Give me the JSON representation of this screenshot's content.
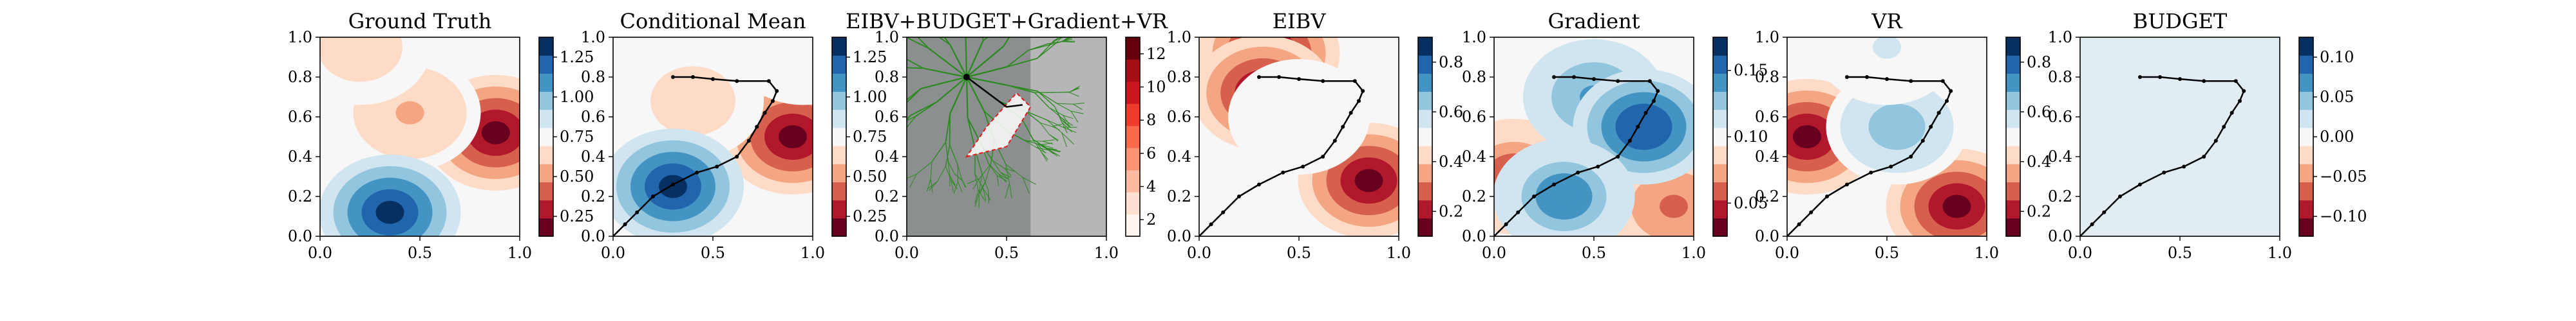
{
  "chart_data": [
    {
      "type": "heatmap",
      "title": "Ground Truth",
      "xlim": [
        0,
        1
      ],
      "ylim": [
        0,
        1
      ],
      "xticks": [
        "0.0",
        "0.5",
        "1.0"
      ],
      "yticks": [
        "0.0",
        "0.2",
        "0.4",
        "0.6",
        "0.8",
        "1.0"
      ],
      "colormap": "RdBu",
      "colorbar_ticks": [
        "0.25",
        "0.50",
        "0.75",
        "1.00",
        "1.25"
      ],
      "colorbar_range": [
        0.1,
        1.4
      ],
      "blobs": [
        {
          "x": 0.88,
          "y": 0.52,
          "value": 0.1
        },
        {
          "x": 0.45,
          "y": 0.62,
          "value": 0.55
        },
        {
          "x": 0.2,
          "y": 0.95,
          "value": 0.6
        },
        {
          "x": 0.35,
          "y": 0.12,
          "value": 1.35
        }
      ]
    },
    {
      "type": "heatmap",
      "title": "Conditional Mean",
      "xlim": [
        0,
        1
      ],
      "ylim": [
        0,
        1
      ],
      "xticks": [
        "0.0",
        "0.5",
        "1.0"
      ],
      "yticks": [
        "0.0",
        "0.2",
        "0.4",
        "0.6",
        "0.8",
        "1.0"
      ],
      "colormap": "RdBu",
      "colorbar_ticks": [
        "0.25",
        "0.50",
        "0.75",
        "1.00",
        "1.25"
      ],
      "colorbar_range": [
        0.1,
        1.4
      ],
      "blobs": [
        {
          "x": 0.9,
          "y": 0.5,
          "value": 0.1
        },
        {
          "x": 0.4,
          "y": 0.68,
          "value": 0.6
        },
        {
          "x": 0.3,
          "y": 0.25,
          "value": 1.35
        },
        {
          "x": 0.95,
          "y": 0.95,
          "value": 0.7
        }
      ],
      "path": [
        [
          0.0,
          0.0
        ],
        [
          0.06,
          0.06
        ],
        [
          0.12,
          0.12
        ],
        [
          0.2,
          0.2
        ],
        [
          0.3,
          0.26
        ],
        [
          0.42,
          0.32
        ],
        [
          0.52,
          0.35
        ],
        [
          0.62,
          0.4
        ],
        [
          0.68,
          0.48
        ],
        [
          0.72,
          0.55
        ],
        [
          0.76,
          0.62
        ],
        [
          0.8,
          0.68
        ],
        [
          0.82,
          0.73
        ],
        [
          0.78,
          0.78
        ],
        [
          0.62,
          0.78
        ],
        [
          0.5,
          0.79
        ],
        [
          0.4,
          0.8
        ],
        [
          0.3,
          0.8
        ]
      ]
    },
    {
      "type": "heatmap",
      "title": "EIBV+BUDGET+Gradient+VR",
      "xlim": [
        0,
        1
      ],
      "ylim": [
        0,
        1
      ],
      "xticks": [
        "0.0",
        "0.5",
        "1.0"
      ],
      "yticks": [
        "0.0",
        "0.2",
        "0.4",
        "0.6",
        "0.8",
        "1.0"
      ],
      "colormap": "Reds",
      "colorbar_ticks": [
        "2",
        "4",
        "6",
        "8",
        "10",
        "12"
      ],
      "colorbar_range": [
        1,
        12
      ],
      "tree_root": [
        0.3,
        0.8
      ],
      "ellipse_polygon": [
        [
          0.3,
          0.4
        ],
        [
          0.5,
          0.45
        ],
        [
          0.62,
          0.65
        ],
        [
          0.55,
          0.72
        ],
        [
          0.4,
          0.55
        ]
      ],
      "path": [
        [
          0.3,
          0.8
        ],
        [
          0.5,
          0.65
        ],
        [
          0.58,
          0.66
        ]
      ]
    },
    {
      "type": "heatmap",
      "title": "EIBV",
      "xlim": [
        0,
        1
      ],
      "ylim": [
        0,
        1
      ],
      "xticks": [
        "0.0",
        "0.5",
        "1.0"
      ],
      "yticks": [
        "0.0",
        "0.2",
        "0.4",
        "0.6",
        "0.8",
        "1.0"
      ],
      "colormap": "RdBu",
      "colorbar_ticks": [
        "0.2",
        "0.4",
        "0.6",
        "0.8"
      ],
      "colorbar_range": [
        0.0,
        1.0
      ],
      "blobs": [
        {
          "x": 0.35,
          "y": 0.92,
          "value": 0.0
        },
        {
          "x": 0.32,
          "y": 0.72,
          "value": 0.0
        },
        {
          "x": 0.85,
          "y": 0.28,
          "value": 0.0
        },
        {
          "x": 0.5,
          "y": 0.6,
          "value": 0.5
        }
      ],
      "path": [
        [
          0.0,
          0.0
        ],
        [
          0.06,
          0.06
        ],
        [
          0.12,
          0.12
        ],
        [
          0.2,
          0.2
        ],
        [
          0.3,
          0.26
        ],
        [
          0.42,
          0.32
        ],
        [
          0.52,
          0.35
        ],
        [
          0.62,
          0.4
        ],
        [
          0.68,
          0.48
        ],
        [
          0.72,
          0.55
        ],
        [
          0.76,
          0.62
        ],
        [
          0.8,
          0.68
        ],
        [
          0.82,
          0.73
        ],
        [
          0.78,
          0.78
        ],
        [
          0.62,
          0.78
        ],
        [
          0.5,
          0.79
        ],
        [
          0.4,
          0.8
        ],
        [
          0.3,
          0.8
        ]
      ]
    },
    {
      "type": "heatmap",
      "title": "Gradient",
      "xlim": [
        0,
        1
      ],
      "ylim": [
        0,
        1
      ],
      "xticks": [
        "0.0",
        "0.5",
        "1.0"
      ],
      "yticks": [
        "0.0",
        "0.2",
        "0.4",
        "0.6",
        "0.8",
        "1.0"
      ],
      "colormap": "RdBu",
      "colorbar_ticks": [
        "0.05",
        "0.10",
        "0.15"
      ],
      "colorbar_range": [
        0.0,
        0.16
      ],
      "blobs": [
        {
          "x": 0.1,
          "y": 0.3,
          "value": 0.02
        },
        {
          "x": 0.9,
          "y": 0.15,
          "value": 0.03
        },
        {
          "x": 0.5,
          "y": 0.7,
          "value": 0.12
        },
        {
          "x": 0.75,
          "y": 0.55,
          "value": 0.15
        },
        {
          "x": 0.35,
          "y": 0.2,
          "value": 0.13
        }
      ],
      "path": [
        [
          0.0,
          0.0
        ],
        [
          0.06,
          0.06
        ],
        [
          0.12,
          0.12
        ],
        [
          0.2,
          0.2
        ],
        [
          0.3,
          0.26
        ],
        [
          0.42,
          0.32
        ],
        [
          0.52,
          0.35
        ],
        [
          0.62,
          0.4
        ],
        [
          0.68,
          0.48
        ],
        [
          0.72,
          0.55
        ],
        [
          0.76,
          0.62
        ],
        [
          0.8,
          0.68
        ],
        [
          0.82,
          0.73
        ],
        [
          0.78,
          0.78
        ],
        [
          0.62,
          0.78
        ],
        [
          0.5,
          0.79
        ],
        [
          0.4,
          0.8
        ],
        [
          0.3,
          0.8
        ]
      ]
    },
    {
      "type": "heatmap",
      "title": "VR",
      "xlim": [
        0,
        1
      ],
      "ylim": [
        0,
        1
      ],
      "xticks": [
        "0.0",
        "0.5",
        "1.0"
      ],
      "yticks": [
        "0.0",
        "0.2",
        "0.4",
        "0.6",
        "0.8",
        "1.0"
      ],
      "colormap": "RdBu",
      "colorbar_ticks": [
        "0.2",
        "0.4",
        "0.6",
        "0.8"
      ],
      "colorbar_range": [
        0.0,
        1.0
      ],
      "blobs": [
        {
          "x": 0.1,
          "y": 0.5,
          "value": 0.0
        },
        {
          "x": 0.85,
          "y": 0.15,
          "value": 0.0
        },
        {
          "x": 0.55,
          "y": 0.55,
          "value": 0.7
        },
        {
          "x": 0.5,
          "y": 0.95,
          "value": 0.55
        }
      ],
      "path": [
        [
          0.0,
          0.0
        ],
        [
          0.06,
          0.06
        ],
        [
          0.12,
          0.12
        ],
        [
          0.2,
          0.2
        ],
        [
          0.3,
          0.26
        ],
        [
          0.42,
          0.32
        ],
        [
          0.52,
          0.35
        ],
        [
          0.62,
          0.4
        ],
        [
          0.68,
          0.48
        ],
        [
          0.72,
          0.55
        ],
        [
          0.76,
          0.62
        ],
        [
          0.8,
          0.68
        ],
        [
          0.82,
          0.73
        ],
        [
          0.78,
          0.78
        ],
        [
          0.62,
          0.78
        ],
        [
          0.5,
          0.79
        ],
        [
          0.4,
          0.8
        ],
        [
          0.3,
          0.8
        ]
      ]
    },
    {
      "type": "heatmap",
      "title": "BUDGET",
      "xlim": [
        0,
        1
      ],
      "ylim": [
        0,
        1
      ],
      "xticks": [
        "0.0",
        "0.5",
        "1.0"
      ],
      "yticks": [
        "0.0",
        "0.2",
        "0.4",
        "0.6",
        "0.8",
        "1.0"
      ],
      "colormap": "RdBu",
      "colorbar_ticks": [
        "−0.10",
        "−0.05",
        "0.00",
        "0.05",
        "0.10"
      ],
      "colorbar_range": [
        -0.1,
        0.1
      ],
      "uniform_value": 0.0,
      "path": [
        [
          0.0,
          0.0
        ],
        [
          0.06,
          0.06
        ],
        [
          0.12,
          0.12
        ],
        [
          0.2,
          0.2
        ],
        [
          0.3,
          0.26
        ],
        [
          0.42,
          0.32
        ],
        [
          0.52,
          0.35
        ],
        [
          0.62,
          0.4
        ],
        [
          0.68,
          0.48
        ],
        [
          0.72,
          0.55
        ],
        [
          0.76,
          0.62
        ],
        [
          0.8,
          0.68
        ],
        [
          0.82,
          0.73
        ],
        [
          0.78,
          0.78
        ],
        [
          0.62,
          0.78
        ],
        [
          0.5,
          0.79
        ],
        [
          0.4,
          0.8
        ],
        [
          0.3,
          0.8
        ]
      ]
    }
  ]
}
